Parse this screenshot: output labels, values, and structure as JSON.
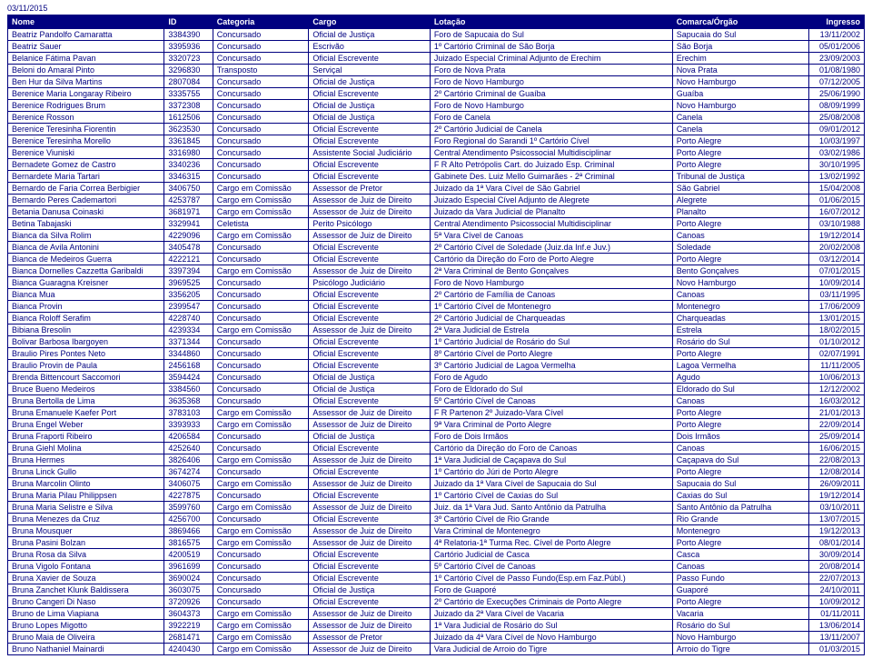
{
  "report_date": "03/11/2015",
  "columns": [
    "Nome",
    "ID",
    "Categoria",
    "Cargo",
    "Lotação",
    "Comarca/Órgão",
    "Ingresso"
  ],
  "rows": [
    [
      "Beatriz Pandolfo Camaratta",
      "3384390",
      "Concursado",
      "Oficial de Justiça",
      "Foro de Sapucaia do Sul",
      "Sapucaia do Sul",
      "13/11/2002"
    ],
    [
      "Beatriz Sauer",
      "3395936",
      "Concursado",
      "Escrivão",
      "1º Cartório Criminal de São Borja",
      "São Borja",
      "05/01/2006"
    ],
    [
      "Belanice Fátima Pavan",
      "3320723",
      "Concursado",
      "Oficial Escrevente",
      "Juizado Especial Criminal Adjunto de Erechim",
      "Erechim",
      "23/09/2003"
    ],
    [
      "Beloni do Amaral Pinto",
      "3296830",
      "Transposto",
      "Serviçal",
      "Foro de Nova Prata",
      "Nova Prata",
      "01/08/1980"
    ],
    [
      "Ben Hur da Silva Martins",
      "2807084",
      "Concursado",
      "Oficial de Justiça",
      "Foro de Novo Hamburgo",
      "Novo Hamburgo",
      "07/12/2005"
    ],
    [
      "Berenice Maria Longaray Ribeiro",
      "3335755",
      "Concursado",
      "Oficial Escrevente",
      "2º Cartório Criminal de Guaíba",
      "Guaíba",
      "25/06/1990"
    ],
    [
      "Berenice Rodrigues Brum",
      "3372308",
      "Concursado",
      "Oficial de Justiça",
      "Foro de Novo Hamburgo",
      "Novo Hamburgo",
      "08/09/1999"
    ],
    [
      "Berenice Rosson",
      "1612506",
      "Concursado",
      "Oficial de Justiça",
      "Foro de Canela",
      "Canela",
      "25/08/2008"
    ],
    [
      "Berenice Teresinha Fiorentin",
      "3623530",
      "Concursado",
      "Oficial Escrevente",
      "2º Cartório Judicial de Canela",
      "Canela",
      "09/01/2012"
    ],
    [
      "Berenice Teresinha Morello",
      "3361845",
      "Concursado",
      "Oficial Escrevente",
      "Foro Regional do Sarandi 1º Cartório Cível",
      "Porto Alegre",
      "10/03/1997"
    ],
    [
      "Berenice Viuniski",
      "3316980",
      "Concursado",
      "Assistente Social Judiciário",
      "Central Atendimento Psicossocial Multidisciplinar",
      "Porto Alegre",
      "03/02/1986"
    ],
    [
      "Bernadete Gomez de Castro",
      "3340236",
      "Concursado",
      "Oficial Escrevente",
      "F R Alto Petrópolis Cart. do Juizado Esp. Criminal",
      "Porto Alegre",
      "30/10/1995"
    ],
    [
      "Bernardete Maria Tartari",
      "3346315",
      "Concursado",
      "Oficial Escrevente",
      "Gabinete Des. Luiz Mello Guimarães - 2ª Criminal",
      "Tribunal de Justiça",
      "13/02/1992"
    ],
    [
      "Bernardo de Faria Correa Berbigier",
      "3406750",
      "Cargo em Comissão",
      "Assessor de Pretor",
      "Juizado da 1ª Vara Cível de São Gabriel",
      "São Gabriel",
      "15/04/2008"
    ],
    [
      "Bernardo Peres Cademartori",
      "4253787",
      "Cargo em Comissão",
      "Assessor de Juiz de Direito",
      "Juizado Especial Cível Adjunto de Alegrete",
      "Alegrete",
      "01/06/2015"
    ],
    [
      "Betania Danusa Coinaski",
      "3681971",
      "Cargo em Comissão",
      "Assessor de Juiz de Direito",
      "Juizado da Vara Judicial de Planalto",
      "Planalto",
      "16/07/2012"
    ],
    [
      "Betina Tabajaski",
      "3329941",
      "Celetista",
      "Perito Psicólogo",
      "Central Atendimento Psicossocial Multidisciplinar",
      "Porto Alegre",
      "03/10/1988"
    ],
    [
      "Bianca da Silva Rolim",
      "4229096",
      "Cargo em Comissão",
      "Assessor de Juiz de Direito",
      "5ª Vara Cível de Canoas",
      "Canoas",
      "19/12/2014"
    ],
    [
      "Bianca de Avila Antonini",
      "3405478",
      "Concursado",
      "Oficial Escrevente",
      "2º Cartório Cível de Soledade (Juiz.da Inf.e Juv.)",
      "Soledade",
      "20/02/2008"
    ],
    [
      "Bianca de Medeiros Guerra",
      "4222121",
      "Concursado",
      "Oficial Escrevente",
      "Cartório da Direção do Foro de Porto Alegre",
      "Porto Alegre",
      "03/12/2014"
    ],
    [
      "Bianca Dornelles Cazzetta Garibaldi",
      "3397394",
      "Cargo em Comissão",
      "Assessor de Juiz de Direito",
      "2ª Vara Criminal de Bento Gonçalves",
      "Bento Gonçalves",
      "07/01/2015"
    ],
    [
      "Bianca Guaragna Kreisner",
      "3969525",
      "Concursado",
      "Psicólogo Judiciário",
      "Foro de Novo Hamburgo",
      "Novo Hamburgo",
      "10/09/2014"
    ],
    [
      "Bianca Mua",
      "3356205",
      "Concursado",
      "Oficial Escrevente",
      "2º Cartório de Família de Canoas",
      "Canoas",
      "03/11/1995"
    ],
    [
      "Bianca Provin",
      "2399547",
      "Concursado",
      "Oficial Escrevente",
      "1º Cartório Cível de Montenegro",
      "Montenegro",
      "17/06/2009"
    ],
    [
      "Bianca Roloff Serafim",
      "4228740",
      "Concursado",
      "Oficial Escrevente",
      "2º Cartório Judicial de Charqueadas",
      "Charqueadas",
      "13/01/2015"
    ],
    [
      "Bibiana Bresolin",
      "4239334",
      "Cargo em Comissão",
      "Assessor de Juiz de Direito",
      "2ª Vara Judicial de Estrela",
      "Estrela",
      "18/02/2015"
    ],
    [
      "Bolivar Barbosa Ibargoyen",
      "3371344",
      "Concursado",
      "Oficial Escrevente",
      "1º Cartório Judicial de Rosário do Sul",
      "Rosário do Sul",
      "01/10/2012"
    ],
    [
      "Braulio Pires Pontes Neto",
      "3344860",
      "Concursado",
      "Oficial Escrevente",
      "8º Cartório Cível de Porto Alegre",
      "Porto Alegre",
      "02/07/1991"
    ],
    [
      "Braulio Provin de Paula",
      "2456168",
      "Concursado",
      "Oficial Escrevente",
      "3º Cartório Judicial de Lagoa Vermelha",
      "Lagoa Vermelha",
      "11/11/2005"
    ],
    [
      "Brenda Bittencourt Saccomori",
      "3594424",
      "Concursado",
      "Oficial de Justiça",
      "Foro de Agudo",
      "Agudo",
      "10/06/2013"
    ],
    [
      "Bruce Bueno Medeiros",
      "3384560",
      "Concursado",
      "Oficial de Justiça",
      "Foro de Eldorado do Sul",
      "Eldorado do Sul",
      "12/12/2002"
    ],
    [
      "Bruna Bertolla de Lima",
      "3635368",
      "Concursado",
      "Oficial Escrevente",
      "5º Cartório Cível de Canoas",
      "Canoas",
      "16/03/2012"
    ],
    [
      "Bruna Emanuele Kaefer Port",
      "3783103",
      "Cargo em Comissão",
      "Assessor de Juiz de Direito",
      "F R Partenon 2º Juizado-Vara Cível",
      "Porto Alegre",
      "21/01/2013"
    ],
    [
      "Bruna Engel Weber",
      "3393933",
      "Cargo em Comissão",
      "Assessor de Juiz de Direito",
      "9ª Vara Criminal de Porto Alegre",
      "Porto Alegre",
      "22/09/2014"
    ],
    [
      "Bruna Fraporti Ribeiro",
      "4206584",
      "Concursado",
      "Oficial de Justiça",
      "Foro de Dois Irmãos",
      "Dois Irmãos",
      "25/09/2014"
    ],
    [
      "Bruna Giehl Molina",
      "4252640",
      "Concursado",
      "Oficial Escrevente",
      "Cartório da Direção do Foro de Canoas",
      "Canoas",
      "16/06/2015"
    ],
    [
      "Bruna Hermes",
      "3826406",
      "Cargo em Comissão",
      "Assessor de Juiz de Direito",
      "1ª Vara Judicial de Caçapava do Sul",
      "Caçapava do Sul",
      "22/08/2013"
    ],
    [
      "Bruna Linck Gullo",
      "3674274",
      "Concursado",
      "Oficial Escrevente",
      "1º Cartório do Júri de Porto Alegre",
      "Porto Alegre",
      "12/08/2014"
    ],
    [
      "Bruna Marcolin Olinto",
      "3406075",
      "Cargo em Comissão",
      "Assessor de Juiz de Direito",
      "Juizado da 1ª Vara Cível de Sapucaia do Sul",
      "Sapucaia do Sul",
      "26/09/2011"
    ],
    [
      "Bruna Maria Pilau Philippsen",
      "4227875",
      "Concursado",
      "Oficial Escrevente",
      "1º Cartório Cível de Caxias do Sul",
      "Caxias do Sul",
      "19/12/2014"
    ],
    [
      "Bruna Maria Selistre e Silva",
      "3599760",
      "Cargo em Comissão",
      "Assessor de Juiz de Direito",
      "Juiz. da 1ª Vara Jud. Santo Antônio da Patrulha",
      "Santo Antônio da Patrulha",
      "03/10/2011"
    ],
    [
      "Bruna Menezes da Cruz",
      "4256700",
      "Concursado",
      "Oficial Escrevente",
      "3º Cartório Cível de Rio Grande",
      "Rio Grande",
      "13/07/2015"
    ],
    [
      "Bruna Mousquer",
      "3869466",
      "Cargo em Comissão",
      "Assessor de Juiz de Direito",
      "Vara Criminal de Montenegro",
      "Montenegro",
      "19/12/2013"
    ],
    [
      "Bruna Pasini Bolzan",
      "3816575",
      "Cargo em Comissão",
      "Assessor de Juiz de Direito",
      "4ª Relatoria-1ª Turma Rec. Cível de Porto Alegre",
      "Porto Alegre",
      "08/01/2014"
    ],
    [
      "Bruna Rosa da Silva",
      "4200519",
      "Concursado",
      "Oficial Escrevente",
      "Cartório Judicial de Casca",
      "Casca",
      "30/09/2014"
    ],
    [
      "Bruna Vigolo Fontana",
      "3961699",
      "Concursado",
      "Oficial Escrevente",
      "5º Cartório Cível de Canoas",
      "Canoas",
      "20/08/2014"
    ],
    [
      "Bruna Xavier de Souza",
      "3690024",
      "Concursado",
      "Oficial Escrevente",
      "1º Cartório Cível de Passo Fundo(Esp.em Faz.Públ.)",
      "Passo Fundo",
      "22/07/2013"
    ],
    [
      "Bruna Zanchet Klunk Baldissera",
      "3603075",
      "Concursado",
      "Oficial de Justiça",
      "Foro de Guaporé",
      "Guaporé",
      "24/10/2011"
    ],
    [
      "Bruno Cangeri Di Naso",
      "3720926",
      "Concursado",
      "Oficial Escrevente",
      "2º Cartório de Execuções Criminais de Porto Alegre",
      "Porto Alegre",
      "10/09/2012"
    ],
    [
      "Bruno de Lima Viapiana",
      "3604373",
      "Cargo em Comissão",
      "Assessor de Juiz de Direito",
      "Juizado da 2ª Vara Cível de Vacaria",
      "Vacaria",
      "01/11/2011"
    ],
    [
      "Bruno Lopes Migotto",
      "3922219",
      "Cargo em Comissão",
      "Assessor de Juiz de Direito",
      "1ª Vara Judicial de Rosário do Sul",
      "Rosário do Sul",
      "13/06/2014"
    ],
    [
      "Bruno Maia de Oliveira",
      "2681471",
      "Cargo em Comissão",
      "Assessor de Pretor",
      "Juizado da 4ª Vara Cível de Novo Hamburgo",
      "Novo Hamburgo",
      "13/11/2007"
    ],
    [
      "Bruno Nathaniel Mainardi",
      "4240430",
      "Cargo em Comissão",
      "Assessor de Juiz de Direito",
      "Vara Judicial de Arroio do Tigre",
      "Arroio do Tigre",
      "01/03/2015"
    ]
  ]
}
